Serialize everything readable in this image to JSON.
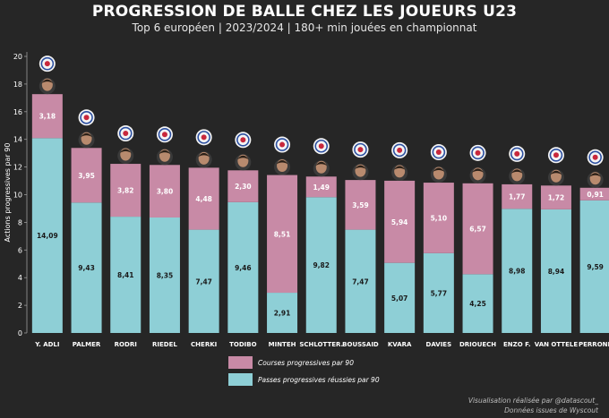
{
  "header": {
    "title": "PROGRESSION DE BALLE CHEZ LES JOUEURS U23",
    "subtitle": "Top 6 européen | 2023/2024 | 180+ min jouées en championnat"
  },
  "credit": {
    "line1": "Visualisation réalisée par @datascout_",
    "line2": "Données issues de Wyscout"
  },
  "colors": {
    "background": "#262626",
    "runs": "#c88aa6",
    "passes": "#8ecfd6"
  },
  "chart_data": {
    "type": "bar",
    "stacked": true,
    "title": "PROGRESSION DE BALLE CHEZ LES JOUEURS U23",
    "subtitle": "Top 6 européen | 2023/2024 | 180+ min jouées en championnat",
    "ylabel": "Actions progressives par 90",
    "xlabel": "",
    "ylim": [
      0,
      20
    ],
    "yticks": [
      0,
      2,
      4,
      6,
      8,
      10,
      12,
      14,
      16,
      18,
      20
    ],
    "grid": false,
    "legend_position": "bottom-center",
    "categories": [
      "Y. ADLI",
      "PALMER",
      "RODRI",
      "RIEDEL",
      "CHERKI",
      "TODIBO",
      "MINTEH",
      "SCHLOTTER.",
      "BOUSSAID",
      "KVARA",
      "DAVIES",
      "DRIOUECH",
      "ENZO F.",
      "VAN OTTELE",
      "PERRONE"
    ],
    "series": [
      {
        "name": "Passes progressives réussies par 90",
        "color": "#8ecfd6",
        "values": [
          14.09,
          9.43,
          8.41,
          8.35,
          7.47,
          9.46,
          2.91,
          9.82,
          7.47,
          5.07,
          5.77,
          4.25,
          8.98,
          8.94,
          9.59
        ],
        "labels": [
          "14,09",
          "9,43",
          "8,41",
          "8,35",
          "7,47",
          "9,46",
          "2,91",
          "9,82",
          "7,47",
          "5,07",
          "5,77",
          "4,25",
          "8,98",
          "8,94",
          "9,59"
        ]
      },
      {
        "name": "Courses progressives par 90",
        "color": "#c88aa6",
        "values": [
          3.18,
          3.95,
          3.82,
          3.8,
          4.48,
          2.3,
          8.51,
          1.49,
          3.59,
          5.94,
          5.1,
          6.57,
          1.77,
          1.72,
          0.91
        ],
        "labels": [
          "3,18",
          "3,95",
          "3,82",
          "3,80",
          "4,48",
          "2,30",
          "8,51",
          "1,49",
          "3,59",
          "5,94",
          "5,10",
          "6,57",
          "1,77",
          "1,72",
          "0,91"
        ]
      }
    ],
    "legend": [
      "Courses progressives par 90",
      "Passes progressives réussies par 90"
    ],
    "club_icons": [
      "ac-milan-crest-icon",
      "chelsea-crest-icon",
      "real-betis-crest-icon",
      "darmstadt-crest-icon",
      "lyon-crest-icon",
      "nice-crest-icon",
      "feyenoord-crest-icon",
      "dortmund-crest-icon",
      "utrecht-crest-icon",
      "napoli-crest-icon",
      "bayern-crest-icon",
      "feyenoord-crest-icon",
      "chelsea-crest-icon",
      "heerenveen-crest-icon",
      "las-palmas-crest-icon"
    ]
  }
}
